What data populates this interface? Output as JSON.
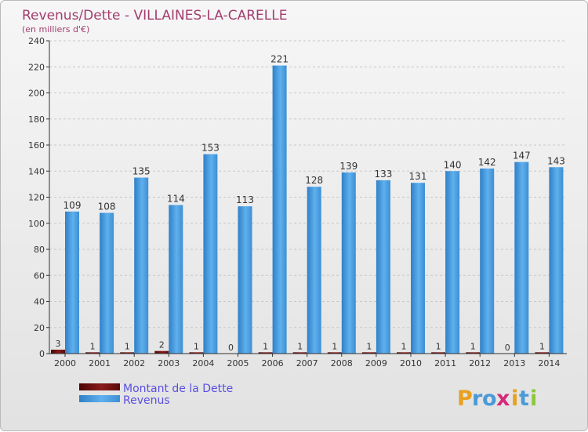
{
  "chart_data": {
    "type": "bar",
    "title": "Revenus/Dette - VILLAINES-LA-CARELLE",
    "subtitle": "(en milliers d'€)",
    "categories": [
      "2000",
      "2001",
      "2002",
      "2003",
      "2004",
      "2005",
      "2006",
      "2007",
      "2008",
      "2009",
      "2010",
      "2011",
      "2012",
      "2013",
      "2014"
    ],
    "series": [
      {
        "name": "Montant de la Dette",
        "color": "#6b0d0d",
        "values": [
          3,
          1,
          1,
          2,
          1,
          0,
          1,
          1,
          1,
          1,
          1,
          1,
          1,
          0,
          1
        ]
      },
      {
        "name": "Revenus",
        "color": "#4ca3e6",
        "values": [
          109,
          108,
          135,
          114,
          153,
          113,
          221,
          128,
          139,
          133,
          131,
          140,
          142,
          147,
          143
        ]
      }
    ],
    "ylim": [
      0,
      240
    ],
    "yticks": [
      0,
      20,
      40,
      60,
      80,
      100,
      120,
      140,
      160,
      180,
      200,
      220,
      240
    ],
    "grid": true,
    "legend_position": "bottom-left"
  },
  "logo": {
    "letters": [
      "P",
      "r",
      "o",
      "x",
      "i",
      "t",
      "i"
    ]
  }
}
